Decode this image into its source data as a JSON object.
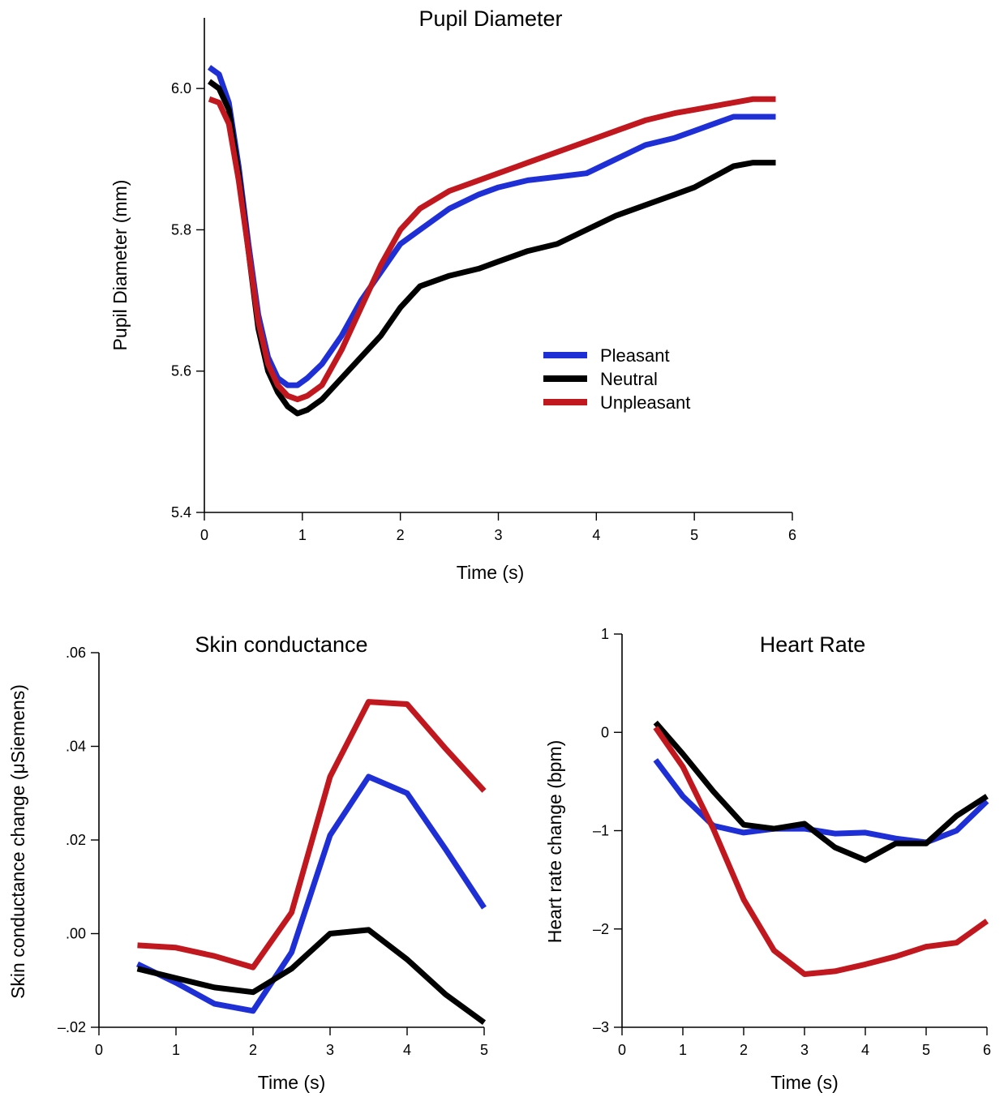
{
  "colors": {
    "pleasant": "#1f2fd6",
    "neutral": "#000000",
    "unpleasant": "#c0181e"
  },
  "legend": [
    {
      "name": "Pleasant",
      "color": "#1f2fd6"
    },
    {
      "name": "Neutral",
      "color": "#000000"
    },
    {
      "name": "Unpleasant",
      "color": "#c0181e"
    }
  ],
  "chart_data": [
    {
      "id": "pupil",
      "type": "line",
      "title": "Pupil Diameter",
      "xlabel": "Time (s)",
      "ylabel": "Pupil Diameter (mm)",
      "xlim": [
        0,
        6
      ],
      "ylim": [
        5.4,
        6.1
      ],
      "xticks": [
        0,
        1,
        2,
        3,
        4,
        5,
        6
      ],
      "xtick_labels": [
        "0",
        "1",
        "2",
        "3",
        "4",
        "5",
        "6"
      ],
      "yticks": [
        5.4,
        5.6,
        5.8,
        6.0
      ],
      "ytick_labels": [
        "5.4",
        "5.6",
        "5.8",
        "6.0"
      ],
      "legend_position": "center-right",
      "grid": false,
      "series": [
        {
          "name": "Pleasant",
          "color": "#1f2fd6",
          "x": [
            0.05,
            0.15,
            0.25,
            0.35,
            0.45,
            0.55,
            0.65,
            0.75,
            0.85,
            0.95,
            1.05,
            1.2,
            1.4,
            1.6,
            1.8,
            2.0,
            2.2,
            2.5,
            2.8,
            3.0,
            3.3,
            3.6,
            3.9,
            4.2,
            4.5,
            4.8,
            5.0,
            5.2,
            5.4,
            5.6,
            5.83
          ],
          "y": [
            6.03,
            6.02,
            5.98,
            5.89,
            5.78,
            5.68,
            5.62,
            5.59,
            5.58,
            5.58,
            5.59,
            5.61,
            5.65,
            5.7,
            5.74,
            5.78,
            5.8,
            5.83,
            5.85,
            5.86,
            5.87,
            5.875,
            5.88,
            5.9,
            5.92,
            5.93,
            5.94,
            5.95,
            5.96,
            5.96,
            5.96
          ]
        },
        {
          "name": "Neutral",
          "color": "#000000",
          "x": [
            0.05,
            0.15,
            0.25,
            0.35,
            0.45,
            0.55,
            0.65,
            0.75,
            0.85,
            0.95,
            1.05,
            1.2,
            1.4,
            1.6,
            1.8,
            2.0,
            2.2,
            2.5,
            2.8,
            3.0,
            3.3,
            3.6,
            3.9,
            4.2,
            4.5,
            4.8,
            5.0,
            5.2,
            5.4,
            5.6,
            5.83
          ],
          "y": [
            6.01,
            6.0,
            5.97,
            5.88,
            5.77,
            5.66,
            5.6,
            5.57,
            5.55,
            5.54,
            5.545,
            5.56,
            5.59,
            5.62,
            5.65,
            5.69,
            5.72,
            5.735,
            5.745,
            5.755,
            5.77,
            5.78,
            5.8,
            5.82,
            5.835,
            5.85,
            5.86,
            5.875,
            5.89,
            5.895,
            5.895
          ]
        },
        {
          "name": "Unpleasant",
          "color": "#c0181e",
          "x": [
            0.05,
            0.15,
            0.25,
            0.35,
            0.45,
            0.55,
            0.65,
            0.75,
            0.85,
            0.95,
            1.05,
            1.2,
            1.4,
            1.6,
            1.8,
            2.0,
            2.2,
            2.5,
            2.8,
            3.0,
            3.3,
            3.6,
            3.9,
            4.2,
            4.5,
            4.8,
            5.0,
            5.2,
            5.4,
            5.6,
            5.83
          ],
          "y": [
            5.985,
            5.98,
            5.95,
            5.87,
            5.77,
            5.67,
            5.61,
            5.58,
            5.565,
            5.56,
            5.565,
            5.58,
            5.63,
            5.69,
            5.75,
            5.8,
            5.83,
            5.855,
            5.87,
            5.88,
            5.895,
            5.91,
            5.925,
            5.94,
            5.955,
            5.965,
            5.97,
            5.975,
            5.98,
            5.985,
            5.985
          ]
        }
      ]
    },
    {
      "id": "skin",
      "type": "line",
      "title": "Skin conductance",
      "xlabel": "Time (s)",
      "ylabel": "Skin conductance change (μSiemens)",
      "xlim": [
        0,
        5
      ],
      "ylim": [
        -0.02,
        0.06
      ],
      "xticks": [
        0,
        1,
        2,
        3,
        4,
        5
      ],
      "xtick_labels": [
        "0",
        "1",
        "2",
        "3",
        "4",
        "5"
      ],
      "yticks": [
        -0.02,
        0.0,
        0.02,
        0.04,
        0.06
      ],
      "ytick_labels": [
        "–.02",
        ".00",
        ".02",
        ".04",
        ".06"
      ],
      "grid": false,
      "series": [
        {
          "name": "Pleasant",
          "color": "#1f2fd6",
          "x": [
            0.5,
            1.0,
            1.5,
            2.0,
            2.5,
            3.0,
            3.5,
            4.0,
            4.5,
            5.0
          ],
          "y": [
            -0.0065,
            -0.0105,
            -0.015,
            -0.0165,
            -0.004,
            0.021,
            0.0335,
            0.03,
            0.018,
            0.0055
          ]
        },
        {
          "name": "Neutral",
          "color": "#000000",
          "x": [
            0.5,
            1.0,
            1.5,
            2.0,
            2.5,
            3.0,
            3.5,
            4.0,
            4.5,
            5.0
          ],
          "y": [
            -0.0075,
            -0.0095,
            -0.0115,
            -0.0125,
            -0.0075,
            0.0,
            0.0008,
            -0.0055,
            -0.013,
            -0.019
          ]
        },
        {
          "name": "Unpleasant",
          "color": "#c0181e",
          "x": [
            0.5,
            1.0,
            1.5,
            2.0,
            2.5,
            3.0,
            3.5,
            4.0,
            4.5,
            5.0
          ],
          "y": [
            -0.0025,
            -0.003,
            -0.0048,
            -0.0072,
            0.0045,
            0.0335,
            0.0495,
            0.049,
            0.0395,
            0.0305
          ]
        }
      ]
    },
    {
      "id": "heart",
      "type": "line",
      "title": "Heart Rate",
      "xlabel": "Time (s)",
      "ylabel": "Heart rate change (bpm)",
      "xlim": [
        0,
        6
      ],
      "ylim": [
        -3,
        1
      ],
      "xticks": [
        0,
        1,
        2,
        3,
        4,
        5,
        6
      ],
      "xtick_labels": [
        "0",
        "1",
        "2",
        "3",
        "4",
        "5",
        "6"
      ],
      "yticks": [
        -3,
        -2,
        -1,
        0,
        1
      ],
      "ytick_labels": [
        "–3",
        "–2",
        "–1",
        "0",
        "1"
      ],
      "grid": false,
      "series": [
        {
          "name": "Pleasant",
          "color": "#1f2fd6",
          "x": [
            0.55,
            1.0,
            1.5,
            2.0,
            2.5,
            3.0,
            3.5,
            4.0,
            4.5,
            5.0,
            5.5,
            6.0
          ],
          "y": [
            -0.28,
            -0.65,
            -0.95,
            -1.02,
            -0.98,
            -0.98,
            -1.03,
            -1.02,
            -1.08,
            -1.12,
            -1.0,
            -0.7
          ]
        },
        {
          "name": "Neutral",
          "color": "#000000",
          "x": [
            0.55,
            1.0,
            1.5,
            2.0,
            2.5,
            3.0,
            3.5,
            4.0,
            4.5,
            5.0,
            5.5,
            6.0
          ],
          "y": [
            0.1,
            -0.22,
            -0.6,
            -0.94,
            -0.98,
            -0.93,
            -1.17,
            -1.3,
            -1.13,
            -1.13,
            -0.85,
            -0.65
          ]
        },
        {
          "name": "Unpleasant",
          "color": "#c0181e",
          "x": [
            0.55,
            1.0,
            1.5,
            2.0,
            2.5,
            3.0,
            3.5,
            4.0,
            4.5,
            5.0,
            5.5,
            6.0
          ],
          "y": [
            0.05,
            -0.35,
            -0.98,
            -1.7,
            -2.22,
            -2.46,
            -2.43,
            -2.36,
            -2.28,
            -2.18,
            -2.14,
            -1.92
          ]
        }
      ]
    }
  ]
}
